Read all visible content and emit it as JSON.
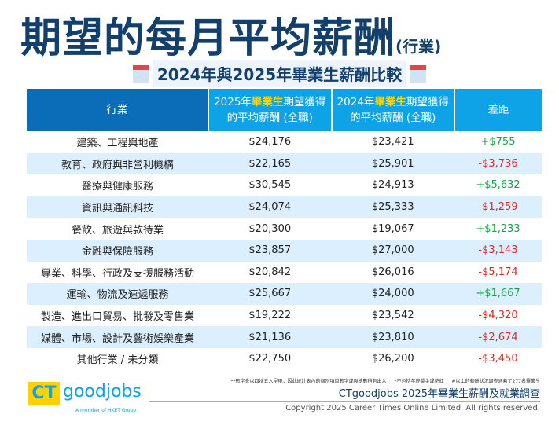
{
  "title": "期望的每月平均薪酬",
  "title_suffix": "(行業)",
  "subtitle": "2024年與2025年畢業生薪酬比較",
  "header": {
    "col1": "行業",
    "col2_a": "2025年",
    "col2_hl": "畢業生",
    "col2_b": "期望獲得",
    "col2_c": "的平均薪酬 (全職)",
    "col3_a": "2024年",
    "col3_hl": "畢業生",
    "col3_b": "期望獲得",
    "col3_c": "的平均薪酬 (全職)",
    "col4": "差距"
  },
  "rows": [
    {
      "industry": "建築、工程與地產",
      "y2025": "$24,176",
      "y2024": "$23,421",
      "diff": "+$755"
    },
    {
      "industry": "教育、政府與非營利機構",
      "y2025": "$22,165",
      "y2024": "$25,901",
      "diff": "-$3,736"
    },
    {
      "industry": "醫療與健康服務",
      "y2025": "$30,545",
      "y2024": "$24,913",
      "diff": "+$5,632"
    },
    {
      "industry": "資訊與通訊科技",
      "y2025": "$24,074",
      "y2024": "$25,333",
      "diff": "-$1,259"
    },
    {
      "industry": "餐飲、旅遊與款待業",
      "y2025": "$20,300",
      "y2024": "$19,067",
      "diff": "+$1,233"
    },
    {
      "industry": "金融與保險服務",
      "y2025": "$23,857",
      "y2024": "$27,000",
      "diff": "-$3,143"
    },
    {
      "industry": "專業、科學、行政及支援服務活動",
      "y2025": "$20,842",
      "y2024": "$26,016",
      "diff": "-$5,174"
    },
    {
      "industry": "運輸、物流及速遞服務",
      "y2025": "$25,667",
      "y2024": "$24,000",
      "diff": "+$1,667"
    },
    {
      "industry": "製造、進出口貿易、批發及零售業",
      "y2025": "$19,222",
      "y2024": "$23,542",
      "diff": "-$4,320"
    },
    {
      "industry": "媒體、市場、設計及藝術娛樂產業",
      "y2025": "$21,136",
      "y2024": "$23,810",
      "diff": "-$2,674"
    },
    {
      "industry": "其他行業 / 未分類",
      "y2025": "$22,750",
      "y2024": "$26,200",
      "diff": "-$3,450"
    }
  ],
  "notes": [
    "**數字會以四捨五入呈現，因此統計表內的個別項目數字或與總數稍有出入",
    "*不包括年終獎金或花紅",
    "#以上的薪酬狀況調查涵蓋了277名畢業生"
  ],
  "source": "CTgoodjobs 2025年畢業生薪酬及就業調查",
  "copyright": "Copyright 2025 Career Times Online Limited. All rights reserved.",
  "logo": {
    "ct": "CT",
    "goodjobs": "goodjobs",
    "member": "A member of HKET Group"
  },
  "colors": {
    "positive": "#1aa34a",
    "negative": "#e02828",
    "header_dark": "#0b6cb8",
    "header_light": "#0ea3e6",
    "title": "#123f6b"
  }
}
